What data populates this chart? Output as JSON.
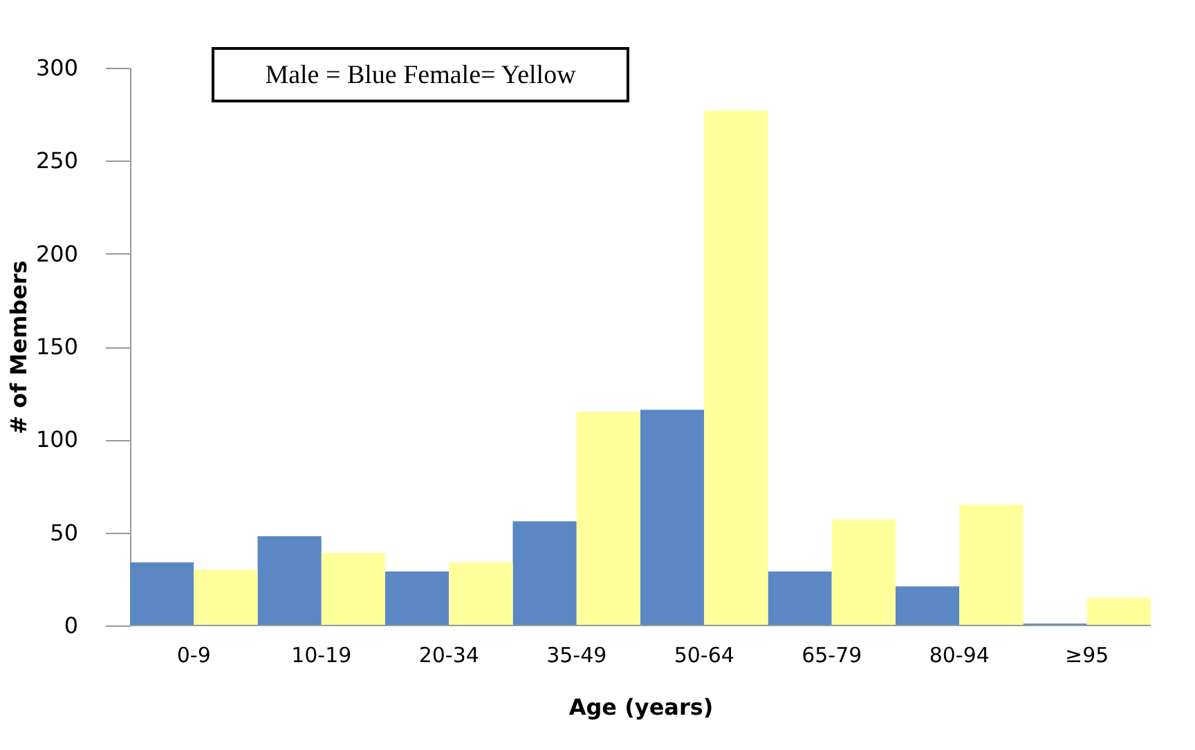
{
  "chart_data": {
    "type": "bar",
    "xlabel": "Age (years)",
    "ylabel": "# of Members",
    "categories": [
      "0-9",
      "10-19",
      "20-34",
      "35-49",
      "50-64",
      "65-79",
      "80-94",
      "≥95"
    ],
    "series": [
      {
        "color": "#5b87c5",
        "values": [
          34,
          48,
          29,
          56,
          116,
          29,
          21,
          1
        ]
      },
      {
        "color": "#ffff9b",
        "values": [
          30,
          39,
          34,
          115,
          277,
          57,
          65,
          15
        ]
      }
    ],
    "annotations": [
      "Male = Blue    Female= Yellow"
    ],
    "ylim": [
      0,
      300
    ],
    "yticks": [
      0,
      50,
      100,
      150,
      200,
      250,
      300
    ],
    "grid": false
  }
}
